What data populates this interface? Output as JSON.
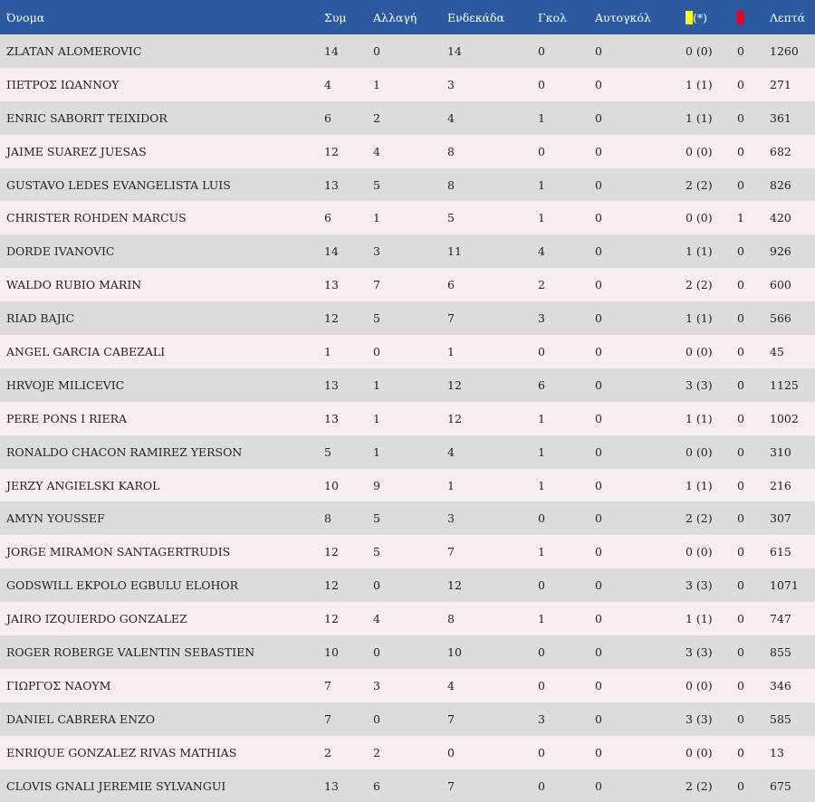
{
  "table": {
    "headers": {
      "name": "Όνομα",
      "appearances": "Συμ",
      "substitute": "Αλλαγή",
      "starting": "Ενδεκάδα",
      "goals": "Γκολ",
      "own_goals": "Αυτογκόλ",
      "yellow_suffix": "(*)",
      "minutes": "Λεπτά"
    },
    "card_icons": {
      "yellow": "yellow-card-icon",
      "red": "red-card-icon"
    },
    "colors": {
      "header_bg": "#2c5aa0",
      "row_odd": "#dcdcdc",
      "row_even": "#f8eef0",
      "yellow": "#ffff00",
      "red": "#e8001c"
    },
    "rows": [
      {
        "name": "ZLATAN ALOMEROVIC",
        "apps": "14",
        "sub": "0",
        "xi": "14",
        "goals": "0",
        "og": "0",
        "yellow": "0 (0)",
        "red": "0",
        "min": "1260"
      },
      {
        "name": "ΠΕΤΡΟΣ ΙΩΑΝΝΟΥ",
        "apps": "4",
        "sub": "1",
        "xi": "3",
        "goals": "0",
        "og": "0",
        "yellow": "1 (1)",
        "red": "0",
        "min": "271"
      },
      {
        "name": "ENRIC SABORIT TEIXIDOR",
        "apps": "6",
        "sub": "2",
        "xi": "4",
        "goals": "1",
        "og": "0",
        "yellow": "1 (1)",
        "red": "0",
        "min": "361"
      },
      {
        "name": "JAIME SUAREZ JUESAS",
        "apps": "12",
        "sub": "4",
        "xi": "8",
        "goals": "0",
        "og": "0",
        "yellow": "0 (0)",
        "red": "0",
        "min": "682"
      },
      {
        "name": "GUSTAVO LEDES EVANGELISTA LUIS",
        "apps": "13",
        "sub": "5",
        "xi": "8",
        "goals": "1",
        "og": "0",
        "yellow": "2 (2)",
        "red": "0",
        "min": "826"
      },
      {
        "name": "CHRISTER ROHDEN MARCUS",
        "apps": "6",
        "sub": "1",
        "xi": "5",
        "goals": "1",
        "og": "0",
        "yellow": "0 (0)",
        "red": "1",
        "min": "420"
      },
      {
        "name": "DORDE IVANOVIC",
        "apps": "14",
        "sub": "3",
        "xi": "11",
        "goals": "4",
        "og": "0",
        "yellow": "1 (1)",
        "red": "0",
        "min": "926"
      },
      {
        "name": "WALDO RUBIO MARIN",
        "apps": "13",
        "sub": "7",
        "xi": "6",
        "goals": "2",
        "og": "0",
        "yellow": "2 (2)",
        "red": "0",
        "min": "600"
      },
      {
        "name": "RIAD BAJIC",
        "apps": "12",
        "sub": "5",
        "xi": "7",
        "goals": "3",
        "og": "0",
        "yellow": "1 (1)",
        "red": "0",
        "min": "566"
      },
      {
        "name": "ANGEL GARCIA CABEZALI",
        "apps": "1",
        "sub": "0",
        "xi": "1",
        "goals": "0",
        "og": "0",
        "yellow": "0 (0)",
        "red": "0",
        "min": "45"
      },
      {
        "name": "HRVOJE MILICEVIC",
        "apps": "13",
        "sub": "1",
        "xi": "12",
        "goals": "6",
        "og": "0",
        "yellow": "3 (3)",
        "red": "0",
        "min": "1125"
      },
      {
        "name": "PERE PONS I RIERA",
        "apps": "13",
        "sub": "1",
        "xi": "12",
        "goals": "1",
        "og": "0",
        "yellow": "1 (1)",
        "red": "0",
        "min": "1002"
      },
      {
        "name": "RONALDO CHACON RAMIREZ YERSON",
        "apps": "5",
        "sub": "1",
        "xi": "4",
        "goals": "1",
        "og": "0",
        "yellow": "0 (0)",
        "red": "0",
        "min": "310"
      },
      {
        "name": "JERZY ANGIELSKI KAROL",
        "apps": "10",
        "sub": "9",
        "xi": "1",
        "goals": "1",
        "og": "0",
        "yellow": "1 (1)",
        "red": "0",
        "min": "216"
      },
      {
        "name": "AMYN YOUSSEF",
        "apps": "8",
        "sub": "5",
        "xi": "3",
        "goals": "0",
        "og": "0",
        "yellow": "2 (2)",
        "red": "0",
        "min": "307"
      },
      {
        "name": "JORGE MIRAMON SANTAGERTRUDIS",
        "apps": "12",
        "sub": "5",
        "xi": "7",
        "goals": "1",
        "og": "0",
        "yellow": "0 (0)",
        "red": "0",
        "min": "615"
      },
      {
        "name": "GODSWILL EKPOLO EGBULU ELOHOR",
        "apps": "12",
        "sub": "0",
        "xi": "12",
        "goals": "0",
        "og": "0",
        "yellow": "3 (3)",
        "red": "0",
        "min": "1071"
      },
      {
        "name": "JAIRO IZQUIERDO GONZALEZ",
        "apps": "12",
        "sub": "4",
        "xi": "8",
        "goals": "1",
        "og": "0",
        "yellow": "1 (1)",
        "red": "0",
        "min": "747"
      },
      {
        "name": "ROGER ROBERGE VALENTIN SEBASTIEN",
        "apps": "10",
        "sub": "0",
        "xi": "10",
        "goals": "0",
        "og": "0",
        "yellow": "3 (3)",
        "red": "0",
        "min": "855"
      },
      {
        "name": "ΓΙΩΡΓΟΣ ΝΑΟΥΜ",
        "apps": "7",
        "sub": "3",
        "xi": "4",
        "goals": "0",
        "og": "0",
        "yellow": "0 (0)",
        "red": "0",
        "min": "346"
      },
      {
        "name": "DANIEL CABRERA ENZO",
        "apps": "7",
        "sub": "0",
        "xi": "7",
        "goals": "3",
        "og": "0",
        "yellow": "3 (3)",
        "red": "0",
        "min": "585"
      },
      {
        "name": "ENRIQUE GONZALEZ RIVAS MATHIAS",
        "apps": "2",
        "sub": "2",
        "xi": "0",
        "goals": "0",
        "og": "0",
        "yellow": "0 (0)",
        "red": "0",
        "min": "13"
      },
      {
        "name": "CLOVIS GNALI JEREMIE SYLVANGUI",
        "apps": "13",
        "sub": "6",
        "xi": "7",
        "goals": "0",
        "og": "0",
        "yellow": "2 (2)",
        "red": "0",
        "min": "675"
      }
    ]
  }
}
